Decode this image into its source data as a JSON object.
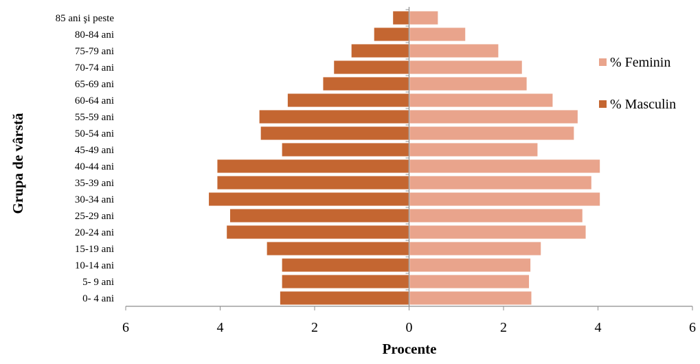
{
  "chart_data": {
    "type": "bar",
    "orientation": "horizontal",
    "layout": "population-pyramid",
    "title": "",
    "xlabel": "Procente",
    "ylabel": "Grupa de vârstă",
    "xlim": [
      -6,
      6
    ],
    "xticks": [
      -6,
      -4,
      -2,
      0,
      2,
      4,
      6
    ],
    "xtick_labels": [
      "6",
      "4",
      "2",
      "0",
      "2",
      "4",
      "6"
    ],
    "grid": false,
    "legend_position": "right",
    "categories": [
      "0- 4 ani",
      "5- 9 ani",
      "10-14 ani",
      "15-19 ani",
      "20-24 ani",
      "25-29 ani",
      "30-34 ani",
      "35-39 ani",
      "40-44 ani",
      "45-49 ani",
      "50-54 ani",
      "55-59 ani",
      "60-64 ani",
      "65-69 ani",
      "70-74 ani",
      "75-79 ani",
      "80-84 ani",
      "85 ani şi peste"
    ],
    "series": [
      {
        "name": "% Feminin",
        "side": "right",
        "color": "#E9A48C",
        "values": [
          2.6,
          2.55,
          2.58,
          2.8,
          3.75,
          3.68,
          4.05,
          3.87,
          4.05,
          2.73,
          3.5,
          3.58,
          3.05,
          2.5,
          2.4,
          1.9,
          1.2,
          0.62
        ]
      },
      {
        "name": "% Masculin",
        "side": "left",
        "color": "#C46631",
        "values": [
          2.74,
          2.7,
          2.7,
          3.02,
          3.87,
          3.8,
          4.25,
          4.07,
          4.07,
          2.7,
          3.15,
          3.18,
          2.58,
          1.83,
          1.6,
          1.23,
          0.75,
          0.35
        ]
      }
    ]
  }
}
